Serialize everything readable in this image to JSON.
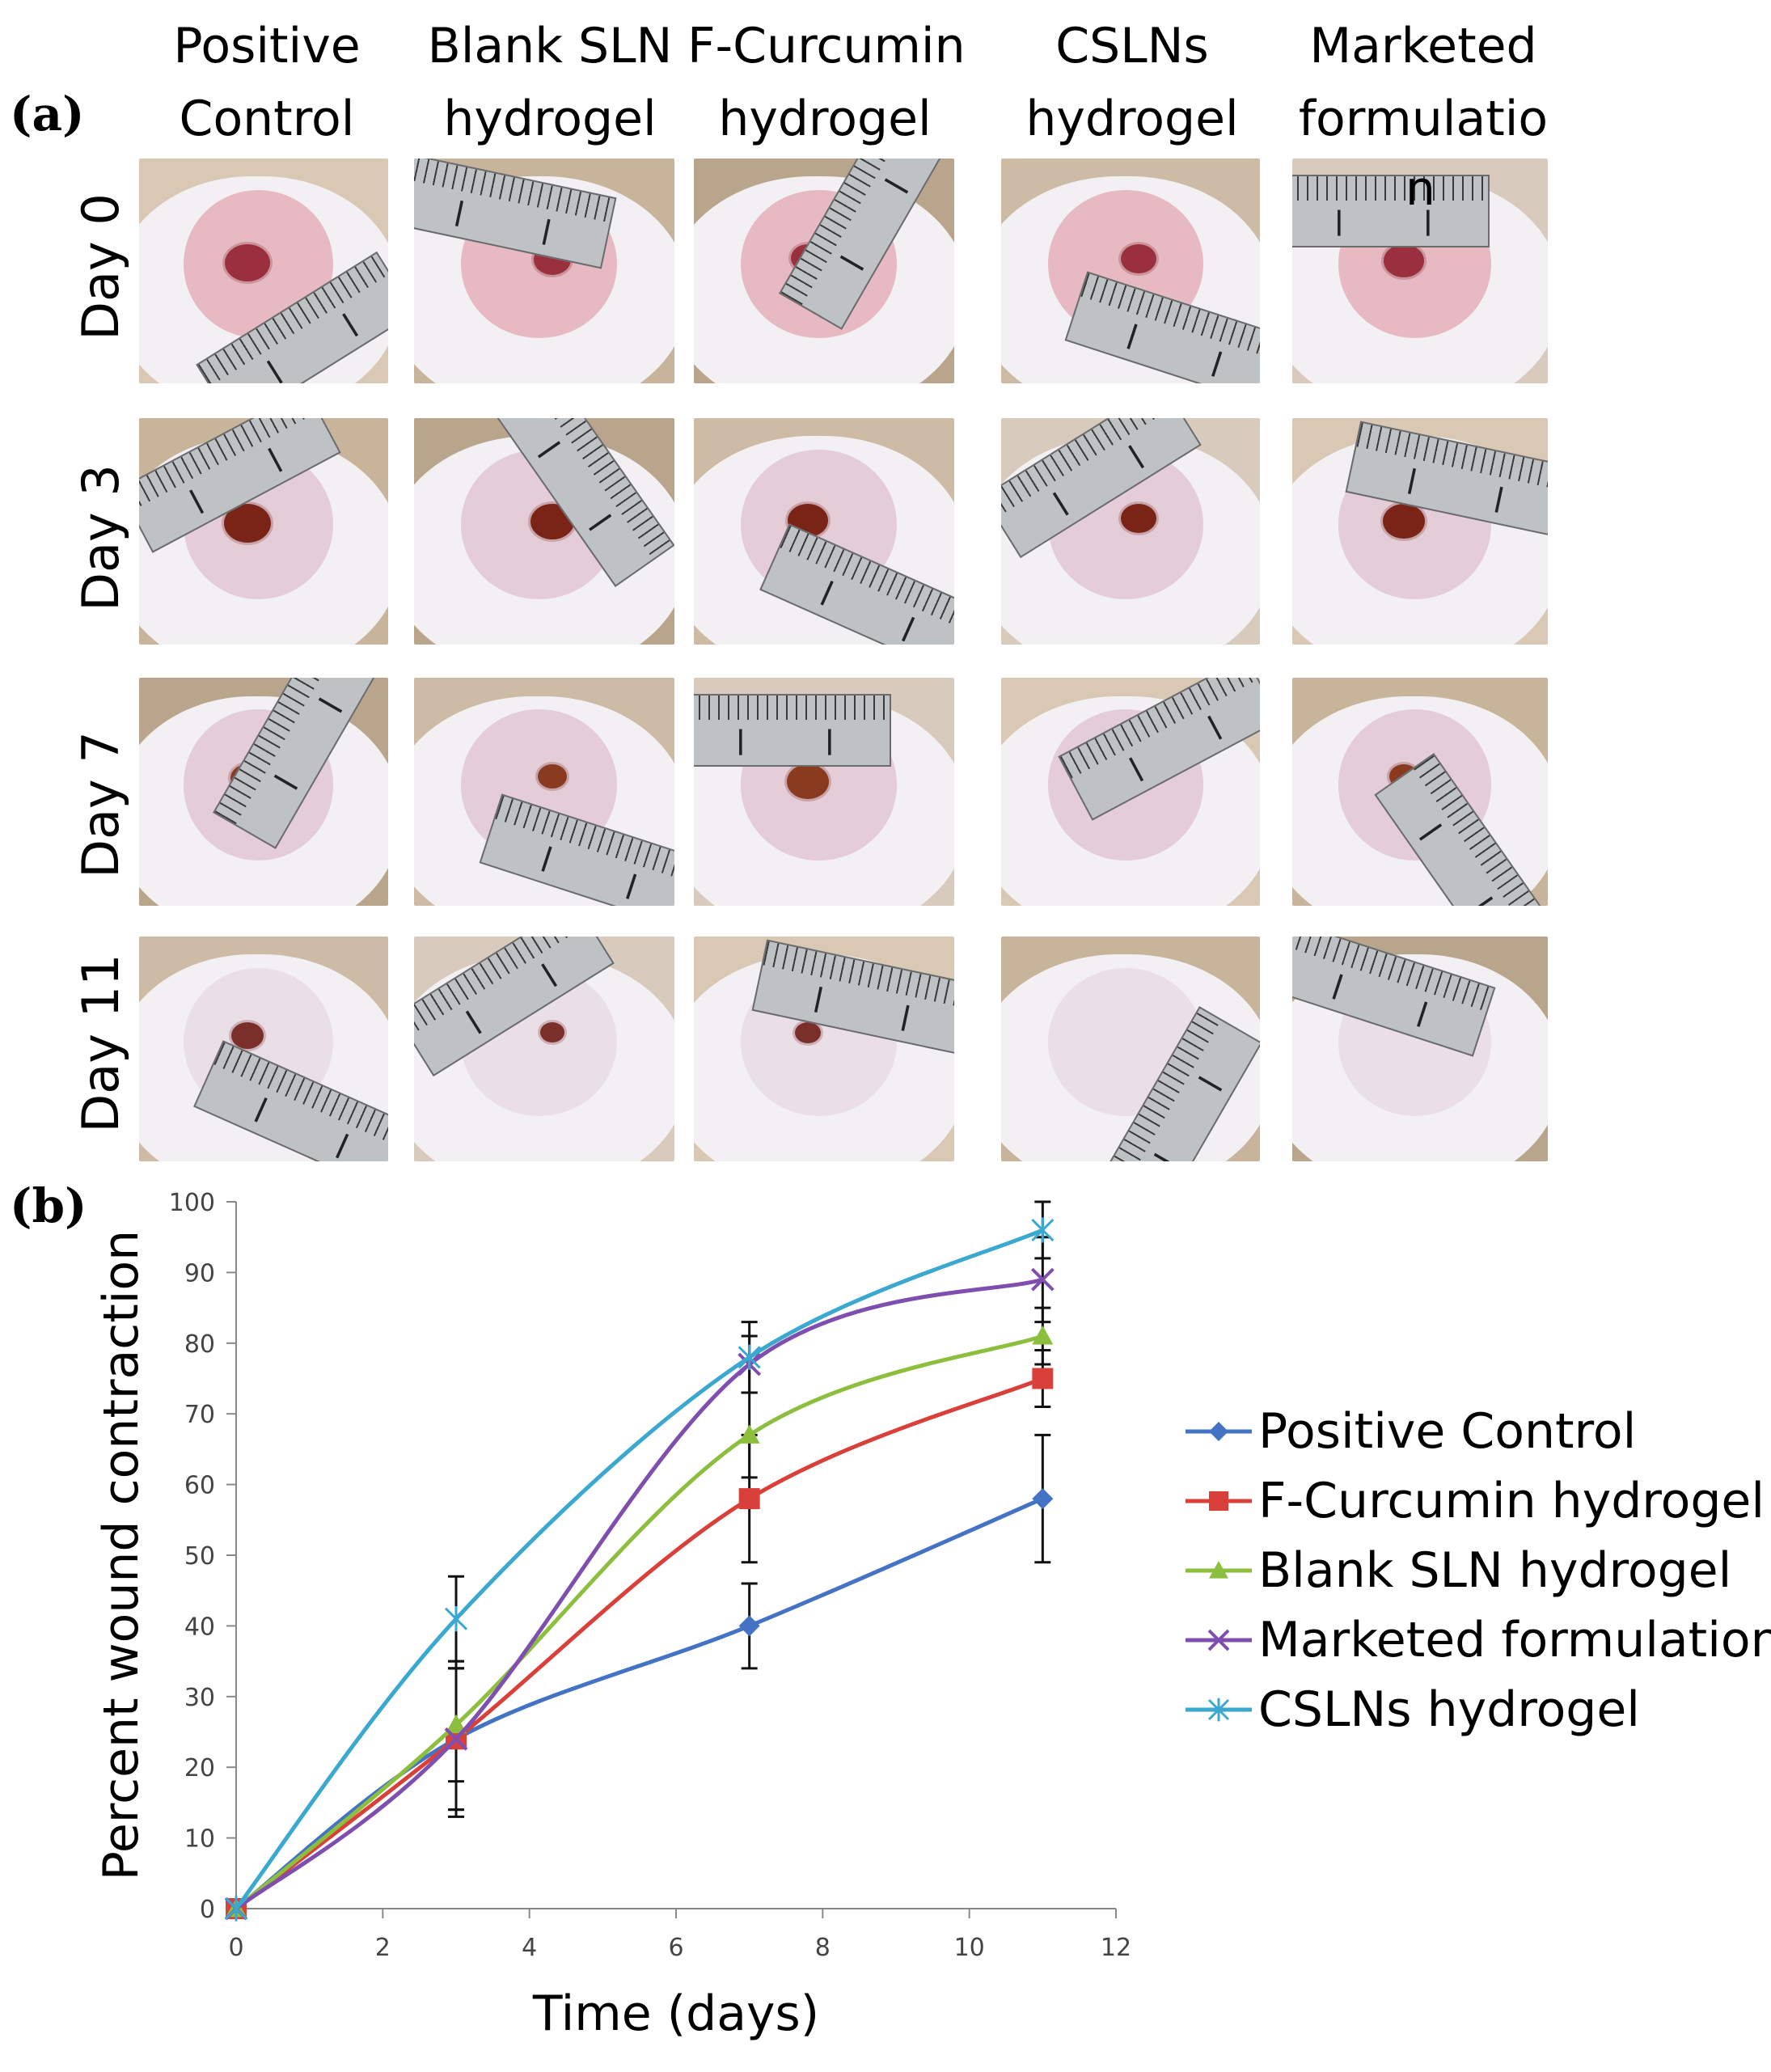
{
  "panel_a": {
    "label": "(a)",
    "columns": [
      {
        "line1": "Positive",
        "line2": "Control"
      },
      {
        "line1": "Blank SLN",
        "line2": "hydrogel"
      },
      {
        "line1": "F-Curcumin",
        "line2": "hydrogel"
      },
      {
        "line1": "CSLNs",
        "line2": "hydrogel"
      },
      {
        "line1": "Marketed",
        "line2": "formulatio",
        "overflow": "n"
      }
    ],
    "rows": [
      "Day 0",
      "Day 3",
      "Day 7",
      "Day 11"
    ]
  },
  "panel_b": {
    "label": "(b)"
  },
  "colors": {
    "positive_control": "#4472c4",
    "f_curcumin": "#d9403a",
    "blank_sln": "#8dbf3f",
    "marketed": "#7f4fb0",
    "cslns": "#3aa8cf"
  },
  "chart_data": {
    "type": "line",
    "xlabel": "Time (days)",
    "ylabel": "Percent wound contraction",
    "xlim": [
      0,
      12
    ],
    "ylim": [
      0,
      100
    ],
    "xticks": [
      0,
      2,
      4,
      6,
      8,
      10,
      12
    ],
    "yticks": [
      0,
      10,
      20,
      30,
      40,
      50,
      60,
      70,
      80,
      90,
      100
    ],
    "x": [
      0,
      3,
      7,
      11
    ],
    "legend_position": "right",
    "series": [
      {
        "name": "Positive Control",
        "color_key": "positive_control",
        "marker": "diamond",
        "values": [
          0,
          24,
          40,
          58
        ],
        "errors": [
          0,
          11,
          6,
          9
        ]
      },
      {
        "name": "F-Curcumin hydrogel",
        "color_key": "f_curcumin",
        "marker": "square",
        "values": [
          0,
          24,
          58,
          75
        ],
        "errors": [
          0,
          10,
          9,
          4
        ]
      },
      {
        "name": "Blank SLN hydrogel",
        "color_key": "blank_sln",
        "marker": "triangle",
        "values": [
          0,
          26,
          67,
          81
        ],
        "errors": [
          0,
          8,
          6,
          4
        ]
      },
      {
        "name": "Marketed formulation",
        "color_key": "marketed",
        "marker": "x",
        "values": [
          0,
          24,
          77,
          89
        ],
        "errors": [
          0,
          10,
          4,
          6
        ]
      },
      {
        "name": "CSLNs hydrogel",
        "color_key": "cslns",
        "marker": "star",
        "values": [
          0,
          41,
          78,
          96
        ],
        "errors": [
          0,
          6,
          5,
          4
        ]
      }
    ]
  }
}
